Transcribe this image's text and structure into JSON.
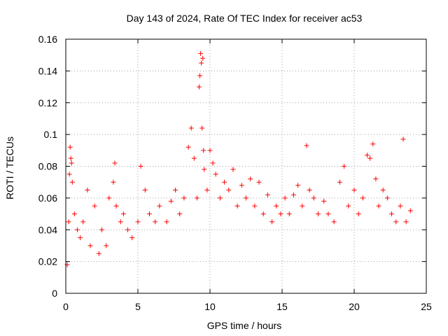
{
  "chart_data": {
    "type": "scatter",
    "title": "Day 143 of 2024, Rate Of TEC Index for receiver ac53",
    "xlabel": "GPS time / hours",
    "ylabel": "ROTI / TECUs",
    "xlim": [
      0,
      25
    ],
    "ylim": [
      0,
      0.16
    ],
    "xticks": [
      0,
      5,
      10,
      15,
      20,
      25
    ],
    "xtick_labels": [
      "0",
      "5",
      "10",
      "15",
      "20",
      "25"
    ],
    "yticks": [
      0,
      0.02,
      0.04,
      0.06,
      0.08,
      0.1,
      0.12,
      0.14,
      0.16
    ],
    "ytick_labels": [
      "0",
      "0.02",
      "0.04",
      "0.06",
      "0.08",
      "0.1",
      "0.12",
      "0.14",
      "0.16"
    ],
    "grid": true,
    "marker": "+",
    "series": [
      {
        "color": "#ff0000",
        "points": [
          [
            0.1,
            0.018
          ],
          [
            0.2,
            0.045
          ],
          [
            0.25,
            0.075
          ],
          [
            0.3,
            0.092
          ],
          [
            0.35,
            0.085
          ],
          [
            0.4,
            0.082
          ],
          [
            0.45,
            0.07
          ],
          [
            0.6,
            0.05
          ],
          [
            0.8,
            0.04
          ],
          [
            1.0,
            0.035
          ],
          [
            1.2,
            0.045
          ],
          [
            1.5,
            0.065
          ],
          [
            1.7,
            0.03
          ],
          [
            2.0,
            0.055
          ],
          [
            2.3,
            0.025
          ],
          [
            2.5,
            0.04
          ],
          [
            2.8,
            0.03
          ],
          [
            3.0,
            0.06
          ],
          [
            3.3,
            0.07
          ],
          [
            3.4,
            0.082
          ],
          [
            3.5,
            0.055
          ],
          [
            3.8,
            0.045
          ],
          [
            4.0,
            0.05
          ],
          [
            4.3,
            0.04
          ],
          [
            4.6,
            0.035
          ],
          [
            5.0,
            0.045
          ],
          [
            5.2,
            0.08
          ],
          [
            5.5,
            0.065
          ],
          [
            5.8,
            0.05
          ],
          [
            6.2,
            0.045
          ],
          [
            6.5,
            0.055
          ],
          [
            7.0,
            0.045
          ],
          [
            7.3,
            0.058
          ],
          [
            7.6,
            0.065
          ],
          [
            7.9,
            0.05
          ],
          [
            8.2,
            0.06
          ],
          [
            8.5,
            0.092
          ],
          [
            8.7,
            0.104
          ],
          [
            8.9,
            0.085
          ],
          [
            9.1,
            0.06
          ],
          [
            9.25,
            0.13
          ],
          [
            9.3,
            0.137
          ],
          [
            9.35,
            0.151
          ],
          [
            9.4,
            0.145
          ],
          [
            9.5,
            0.148
          ],
          [
            9.45,
            0.104
          ],
          [
            9.55,
            0.09
          ],
          [
            9.6,
            0.078
          ],
          [
            9.8,
            0.065
          ],
          [
            10.0,
            0.09
          ],
          [
            10.2,
            0.082
          ],
          [
            10.4,
            0.075
          ],
          [
            10.7,
            0.06
          ],
          [
            11.0,
            0.07
          ],
          [
            11.3,
            0.065
          ],
          [
            11.6,
            0.078
          ],
          [
            11.9,
            0.055
          ],
          [
            12.2,
            0.068
          ],
          [
            12.5,
            0.06
          ],
          [
            12.8,
            0.072
          ],
          [
            13.1,
            0.055
          ],
          [
            13.4,
            0.07
          ],
          [
            13.7,
            0.05
          ],
          [
            14.0,
            0.062
          ],
          [
            14.3,
            0.045
          ],
          [
            14.6,
            0.055
          ],
          [
            14.9,
            0.05
          ],
          [
            15.2,
            0.06
          ],
          [
            15.5,
            0.05
          ],
          [
            15.8,
            0.062
          ],
          [
            16.1,
            0.068
          ],
          [
            16.4,
            0.055
          ],
          [
            16.7,
            0.093
          ],
          [
            16.9,
            0.065
          ],
          [
            17.2,
            0.06
          ],
          [
            17.5,
            0.05
          ],
          [
            17.9,
            0.058
          ],
          [
            18.2,
            0.05
          ],
          [
            18.6,
            0.045
          ],
          [
            19.0,
            0.07
          ],
          [
            19.3,
            0.08
          ],
          [
            19.6,
            0.055
          ],
          [
            20.0,
            0.065
          ],
          [
            20.3,
            0.05
          ],
          [
            20.6,
            0.06
          ],
          [
            20.9,
            0.087
          ],
          [
            21.1,
            0.085
          ],
          [
            21.3,
            0.094
          ],
          [
            21.5,
            0.072
          ],
          [
            21.7,
            0.055
          ],
          [
            22.0,
            0.065
          ],
          [
            22.3,
            0.06
          ],
          [
            22.6,
            0.05
          ],
          [
            22.9,
            0.045
          ],
          [
            23.2,
            0.055
          ],
          [
            23.4,
            0.097
          ],
          [
            23.6,
            0.045
          ],
          [
            23.9,
            0.052
          ]
        ]
      }
    ]
  },
  "colors": {
    "data": "#ff0000",
    "grid": "#a0a0a0",
    "axis": "#000000"
  }
}
